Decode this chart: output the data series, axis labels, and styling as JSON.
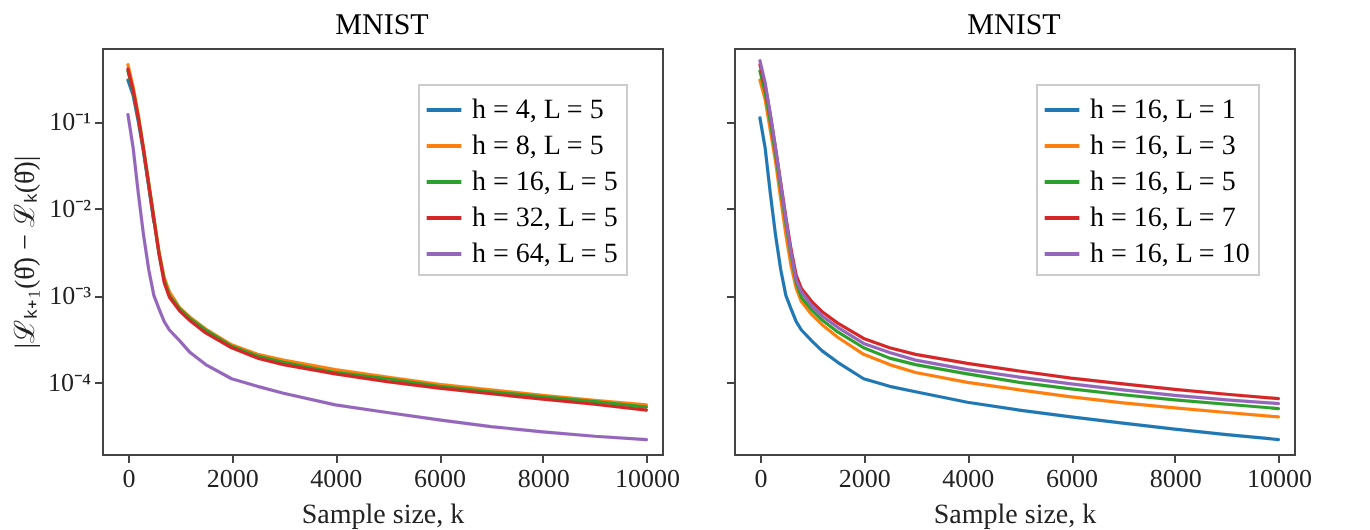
{
  "chart_data": [
    {
      "type": "line",
      "title": "MNIST",
      "xlabel": "Sample size, k",
      "ylabel": "|ℒₖ₊₁(θ̂) − ℒₖ(θ̂)|",
      "log": "y",
      "legend": "top right",
      "grid": false,
      "xlim": [
        -500,
        10300
      ],
      "xticks": [
        0,
        2000,
        4000,
        6000,
        8000,
        10000
      ],
      "ylim": [
        1.5e-05,
        0.7
      ],
      "yticks": [
        {
          "value": 0.1,
          "label": "10⁻¹"
        },
        {
          "value": 0.01,
          "label": "10⁻²"
        },
        {
          "value": 0.001,
          "label": "10⁻³"
        },
        {
          "value": 0.0001,
          "label": "10⁻⁴"
        }
      ],
      "x": [
        0,
        100,
        200,
        300,
        400,
        500,
        600,
        700,
        800,
        1000,
        1200,
        1500,
        2000,
        2500,
        3000,
        4000,
        5000,
        6000,
        7000,
        8000,
        9000,
        10000
      ],
      "series": [
        {
          "name": "h = 4, L = 5",
          "color": "#1f77b4",
          "values": [
            0.3,
            0.2,
            0.1,
            0.045,
            0.018,
            0.007,
            null,
            null,
            null,
            null,
            null,
            null,
            null,
            null,
            null,
            null,
            null,
            null,
            null,
            null,
            null,
            null
          ]
        },
        {
          "name": "h = 8, L = 5",
          "color": "#ff7f0e",
          "values": [
            0.45,
            0.25,
            0.12,
            0.05,
            0.02,
            0.008,
            0.0032,
            0.0016,
            0.0011,
            0.00072,
            0.00056,
            0.00041,
            0.00027,
            0.00021,
            0.00018,
            0.00014,
            0.000115,
            9.5e-05,
            8.2e-05,
            7.1e-05,
            6.2e-05,
            5.5e-05
          ]
        },
        {
          "name": "h = 16, L = 5",
          "color": "#2ca02c",
          "values": [
            0.38,
            0.22,
            0.11,
            0.047,
            0.019,
            0.0075,
            0.003,
            0.0015,
            0.001,
            0.0007,
            0.00054,
            0.0004,
            0.00026,
            0.0002,
            0.00017,
            0.00013,
            0.00011,
            9e-05,
            7.8e-05,
            6.8e-05,
            6e-05,
            5.2e-05
          ]
        },
        {
          "name": "h = 32, L = 5",
          "color": "#d62728",
          "values": [
            0.4,
            0.23,
            0.11,
            0.048,
            0.019,
            0.0075,
            0.003,
            0.0014,
            0.00095,
            0.00066,
            0.00051,
            0.00037,
            0.00025,
            0.00019,
            0.00016,
            0.000125,
            0.000102,
            8.6e-05,
            7.4e-05,
            6.4e-05,
            5.6e-05,
            4.8e-05
          ]
        },
        {
          "name": "h = 64, L = 5",
          "color": "#9467bd",
          "values": [
            0.12,
            0.05,
            0.015,
            0.005,
            0.002,
            0.001,
            0.0007,
            0.0005,
            0.0004,
            0.0003,
            0.00022,
            0.00016,
            0.00011,
            9e-05,
            7.5e-05,
            5.5e-05,
            4.5e-05,
            3.7e-05,
            3.1e-05,
            2.7e-05,
            2.4e-05,
            2.2e-05
          ]
        }
      ]
    },
    {
      "type": "line",
      "title": "MNIST",
      "xlabel": "Sample size, k",
      "log": "y",
      "legend": "top right",
      "grid": false,
      "tick_labels": "x",
      "xlim": [
        -500,
        10300
      ],
      "xticks": [
        0,
        2000,
        4000,
        6000,
        8000,
        10000
      ],
      "ylim": [
        1.5e-05,
        0.7
      ],
      "yticks": [
        {
          "value": 0.1,
          "label": null
        },
        {
          "value": 0.01,
          "label": null
        },
        {
          "value": 0.001,
          "label": null
        },
        {
          "value": 0.0001,
          "label": null
        }
      ],
      "x": [
        0,
        100,
        200,
        300,
        400,
        500,
        600,
        700,
        800,
        1000,
        1200,
        1500,
        2000,
        2500,
        3000,
        4000,
        5000,
        6000,
        7000,
        8000,
        9000,
        10000
      ],
      "series": [
        {
          "name": "h = 16, L = 1",
          "color": "#1f77b4",
          "values": [
            0.11,
            0.05,
            0.015,
            0.005,
            0.002,
            0.001,
            0.0007,
            0.0005,
            0.0004,
            0.0003,
            0.00023,
            0.00017,
            0.00011,
            9e-05,
            7.8e-05,
            5.9e-05,
            4.8e-05,
            4e-05,
            3.4e-05,
            2.9e-05,
            2.5e-05,
            2.2e-05
          ]
        },
        {
          "name": "h = 16, L = 3",
          "color": "#ff7f0e",
          "values": [
            0.3,
            0.18,
            0.08,
            0.035,
            0.013,
            0.005,
            0.0022,
            0.0012,
            0.00085,
            0.0006,
            0.00046,
            0.00033,
            0.00021,
            0.00016,
            0.00013,
            0.0001,
            8.2e-05,
            6.8e-05,
            5.8e-05,
            5.1e-05,
            4.5e-05,
            4e-05
          ]
        },
        {
          "name": "h = 16, L = 5",
          "color": "#2ca02c",
          "values": [
            0.38,
            0.22,
            0.1,
            0.043,
            0.017,
            0.0068,
            0.0029,
            0.0014,
            0.00095,
            0.00068,
            0.00052,
            0.00038,
            0.00025,
            0.00019,
            0.00016,
            0.000125,
            0.0001,
            8.4e-05,
            7.2e-05,
            6.3e-05,
            5.6e-05,
            5e-05
          ]
        },
        {
          "name": "h = 16, L = 7",
          "color": "#d62728",
          "values": [
            0.45,
            0.26,
            0.12,
            0.05,
            0.02,
            0.008,
            0.0034,
            0.0017,
            0.0012,
            0.00085,
            0.00065,
            0.00048,
            0.00032,
            0.00025,
            0.00021,
            0.000165,
            0.000135,
            0.000112,
            9.6e-05,
            8.3e-05,
            7.3e-05,
            6.5e-05
          ]
        },
        {
          "name": "h = 16, L = 10",
          "color": "#9467bd",
          "values": [
            0.5,
            0.28,
            0.12,
            0.05,
            0.019,
            0.0075,
            0.0031,
            0.0015,
            0.0011,
            0.00076,
            0.00058,
            0.00043,
            0.00028,
            0.00022,
            0.00018,
            0.00014,
            0.000115,
            9.6e-05,
            8.2e-05,
            7.1e-05,
            6.3e-05,
            5.7e-05
          ]
        }
      ]
    }
  ]
}
